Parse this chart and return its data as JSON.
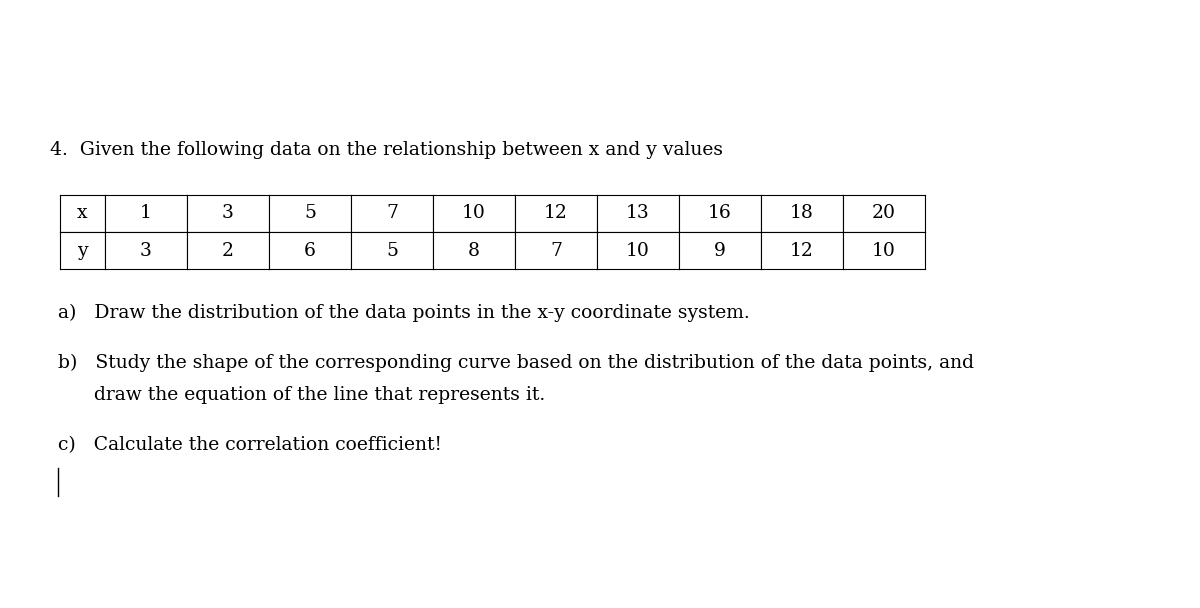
{
  "title_number": "4.",
  "title_text": "  Given the following data on the relationship between x and y values",
  "x_values": [
    1,
    3,
    5,
    7,
    10,
    12,
    13,
    16,
    18,
    20
  ],
  "y_values": [
    3,
    2,
    6,
    5,
    8,
    7,
    10,
    9,
    12,
    10
  ],
  "x_label": "x",
  "y_label": "y",
  "question_a": "a)   Draw the distribution of the data points in the x-y coordinate system.",
  "question_b_line1": "b)   Study the shape of the corresponding curve based on the distribution of the data points, and",
  "question_b_line2": "      draw the equation of the line that represents it.",
  "question_c": "c)   Calculate the correlation coefficient!",
  "background_color": "#ffffff",
  "text_color": "#000000",
  "font_size_title": 13.5,
  "font_size_table": 13.5,
  "font_size_questions": 13.5
}
